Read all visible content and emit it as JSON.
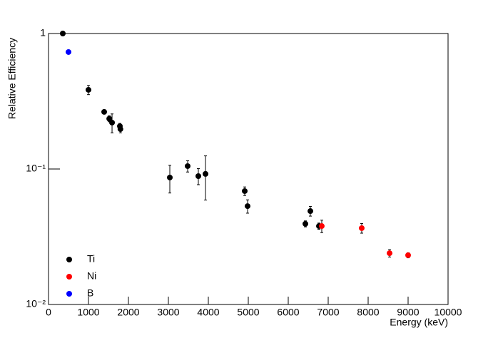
{
  "chart_data": {
    "type": "scatter",
    "x_label": "Energy (keV)",
    "y_label": "Relative Efficiency",
    "xlim": [
      0,
      10000
    ],
    "xticks": [
      0,
      1000,
      2000,
      3000,
      4000,
      5000,
      6000,
      7000,
      8000,
      9000,
      10000
    ],
    "ylim": [
      0.01,
      1
    ],
    "log_y": true,
    "yticks": [
      {
        "value": 0.01,
        "label": "10⁻²"
      },
      {
        "value": 0.1,
        "label": "10⁻¹"
      },
      1
    ],
    "legend": "lower left",
    "series": [
      {
        "name": "Ti",
        "color": "#000000",
        "x": [
          357,
          1000,
          1393,
          1520,
          1590,
          1786,
          1800,
          3036,
          3482,
          3750,
          3929,
          4911,
          4982,
          6429,
          6554,
          6768
        ],
        "values": [
          1.0,
          0.384,
          0.264,
          0.235,
          0.22,
          0.207,
          0.197,
          0.0865,
          0.105,
          0.0886,
          0.092,
          0.0687,
          0.0532,
          0.0394,
          0.0489,
          0.0379
        ],
        "errors": [
          0.005,
          0.03,
          0.008,
          0.012,
          0.035,
          0.01,
          0.012,
          0.02,
          0.01,
          0.012,
          0.033,
          0.005,
          0.006,
          0.002,
          0.004,
          0.002
        ]
      },
      {
        "name": "Ni",
        "color": "#ff0000",
        "x": [
          6839,
          7839,
          8536,
          9000
        ],
        "values": [
          0.0379,
          0.0366,
          0.0239,
          0.0231
        ],
        "errors": [
          0.004,
          0.003,
          0.0015,
          0.001
        ]
      },
      {
        "name": "B",
        "color": "#0000ff",
        "x": [
          500
        ],
        "values": [
          0.73
        ],
        "errors": [
          0.02
        ]
      }
    ]
  }
}
